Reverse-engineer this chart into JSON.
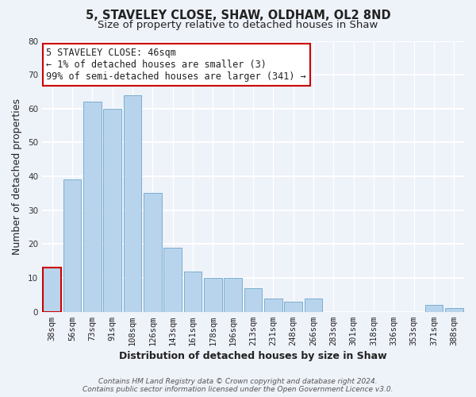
{
  "title": "5, STAVELEY CLOSE, SHAW, OLDHAM, OL2 8ND",
  "subtitle": "Size of property relative to detached houses in Shaw",
  "xlabel": "Distribution of detached houses by size in Shaw",
  "ylabel": "Number of detached properties",
  "bar_labels": [
    "38sqm",
    "56sqm",
    "73sqm",
    "91sqm",
    "108sqm",
    "126sqm",
    "143sqm",
    "161sqm",
    "178sqm",
    "196sqm",
    "213sqm",
    "231sqm",
    "248sqm",
    "266sqm",
    "283sqm",
    "301sqm",
    "318sqm",
    "336sqm",
    "353sqm",
    "371sqm",
    "388sqm"
  ],
  "bar_values": [
    13,
    39,
    62,
    60,
    64,
    35,
    19,
    12,
    10,
    10,
    7,
    4,
    3,
    4,
    0,
    0,
    0,
    0,
    0,
    2,
    1
  ],
  "bar_color": "#b8d4ec",
  "bar_edge_color": "#7aaed0",
  "highlight_bar_index": 0,
  "highlight_bar_edge_color": "#cc0000",
  "annotation_text": "5 STAVELEY CLOSE: 46sqm\n← 1% of detached houses are smaller (3)\n99% of semi-detached houses are larger (341) →",
  "annotation_box_edge_color": "#cc0000",
  "ylim": [
    0,
    80
  ],
  "yticks": [
    0,
    10,
    20,
    30,
    40,
    50,
    60,
    70,
    80
  ],
  "footer_line1": "Contains HM Land Registry data © Crown copyright and database right 2024.",
  "footer_line2": "Contains public sector information licensed under the Open Government Licence v3.0.",
  "background_color": "#eef2f9",
  "plot_background_color": "#eef2f9",
  "grid_color": "#ffffff",
  "title_fontsize": 10.5,
  "subtitle_fontsize": 9.5,
  "axis_label_fontsize": 9,
  "tick_fontsize": 7.5,
  "annotation_fontsize": 8.5,
  "footer_fontsize": 6.5
}
